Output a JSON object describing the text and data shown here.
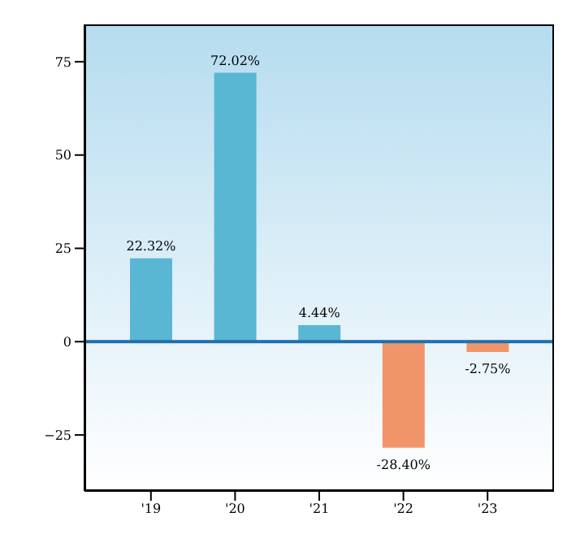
{
  "chart_data": {
    "type": "bar",
    "categories": [
      "'19",
      "'20",
      "'21",
      "'22",
      "'23"
    ],
    "values": [
      22.32,
      72.02,
      4.44,
      -28.4,
      -2.75
    ],
    "colors": [
      "#5ab7d3",
      "#5ab7d3",
      "#5ab7d3",
      "#f0956a",
      "#f0956a"
    ],
    "value_labels": [
      "22.32%",
      "72.02%",
      "4.44%",
      "-28.40%",
      "-2.75%"
    ],
    "ylim": [
      -40,
      85
    ],
    "yticks": [
      -25,
      0,
      25,
      50,
      75
    ],
    "ref_lines": [
      {
        "axis": "y",
        "value": 0,
        "color": "#1f6fb0"
      }
    ],
    "grid": false
  }
}
